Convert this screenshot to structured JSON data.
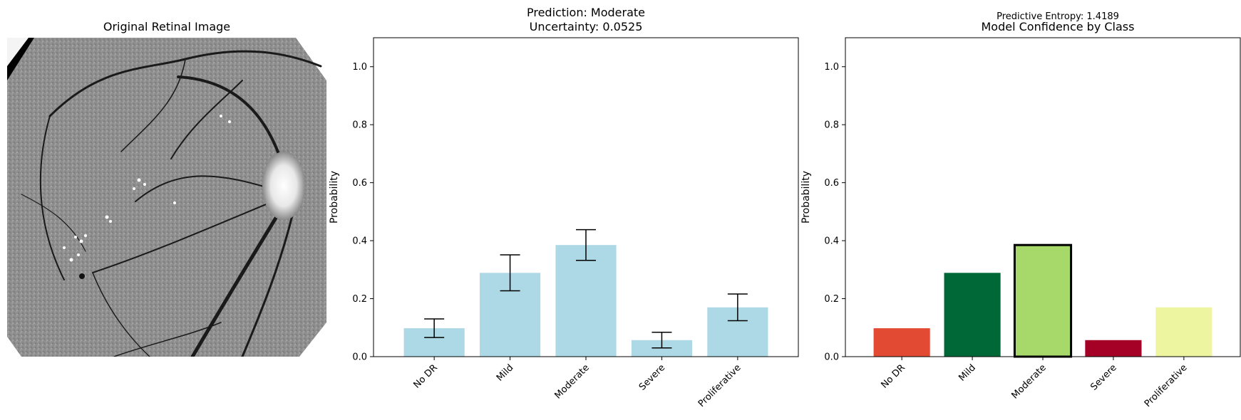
{
  "image_panel": {
    "title": "Original Retinal Image"
  },
  "chart_data": [
    {
      "type": "bar",
      "title": "Prediction: Moderate",
      "subtitle": "Uncertainty: 0.0525",
      "xlabel": "",
      "ylabel": "Probability",
      "ylim": [
        0,
        1.1
      ],
      "yticks": [
        "0.0",
        "0.2",
        "0.4",
        "0.6",
        "0.8",
        "1.0"
      ],
      "categories": [
        "No DR",
        "Mild",
        "Moderate",
        "Severe",
        "Proliferative"
      ],
      "values": [
        0.098,
        0.289,
        0.385,
        0.057,
        0.17
      ],
      "error": [
        0.032,
        0.062,
        0.053,
        0.027,
        0.046
      ],
      "bar_color": "#add8e6"
    },
    {
      "type": "bar",
      "title": "Model Confidence by Class",
      "annotation": "Predictive Entropy: 1.4189",
      "xlabel": "",
      "ylabel": "Probability",
      "ylim": [
        0,
        1.1
      ],
      "yticks": [
        "0.0",
        "0.2",
        "0.4",
        "0.6",
        "0.8",
        "1.0"
      ],
      "categories": [
        "No DR",
        "Mild",
        "Moderate",
        "Severe",
        "Proliferative"
      ],
      "values": [
        0.098,
        0.289,
        0.385,
        0.057,
        0.17
      ],
      "colors": [
        "#e34a33",
        "#006837",
        "#a6d96a",
        "#a50026",
        "#eef5a0"
      ],
      "highlight": "Moderate"
    }
  ]
}
